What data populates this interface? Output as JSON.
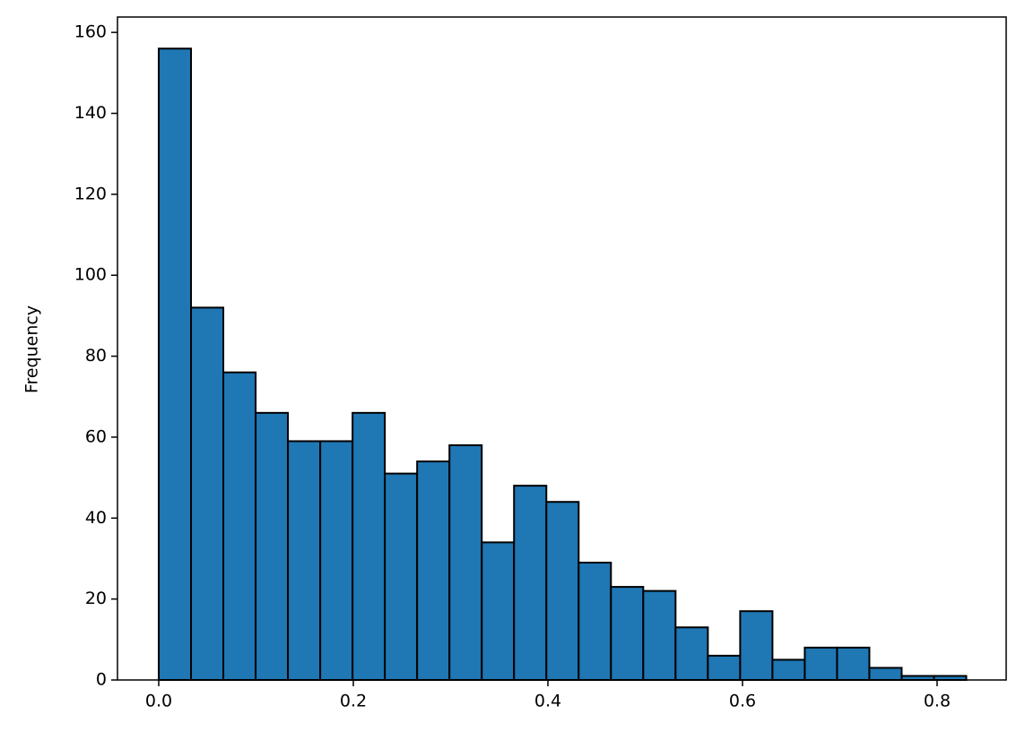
{
  "chart_data": {
    "type": "histogram",
    "ylabel": "Frequency",
    "bins": [
      0,
      0.0332,
      0.0664,
      0.0996,
      0.1328,
      0.166,
      0.1992,
      0.2324,
      0.2656,
      0.2988,
      0.332,
      0.3652,
      0.3984,
      0.4316,
      0.4648,
      0.498,
      0.5312,
      0.5644,
      0.5976,
      0.6308,
      0.664,
      0.6972,
      0.7304,
      0.7636,
      0.7968,
      0.83
    ],
    "values": [
      156,
      92,
      76,
      66,
      59,
      59,
      66,
      51,
      54,
      58,
      34,
      48,
      44,
      29,
      23,
      22,
      13,
      6,
      17,
      5,
      8,
      8,
      3,
      1,
      1
    ],
    "color": "#1f77b4",
    "edgecolor": "#000000",
    "xlim": [
      -0.0424,
      0.871
    ],
    "ylim": [
      0,
      163.8
    ],
    "xticks": [
      {
        "value": 0,
        "label": "0.0"
      },
      0.2,
      0.4,
      0.6,
      0.8
    ],
    "yticks": [
      0,
      20,
      40,
      60,
      80,
      100,
      120,
      140,
      160
    ],
    "grid": false
  }
}
